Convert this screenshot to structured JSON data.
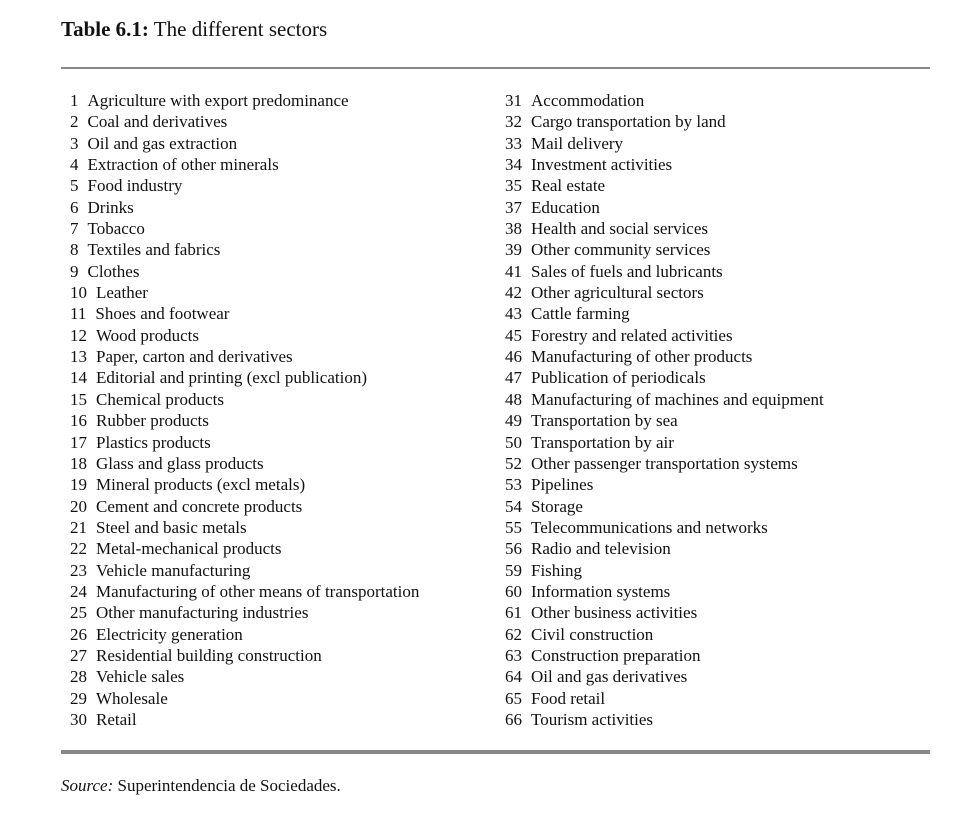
{
  "title": {
    "label": "Table 6.1:",
    "text": "The different sectors"
  },
  "left_column": [
    {
      "num": "1",
      "name": "Agriculture with export predominance"
    },
    {
      "num": "2",
      "name": "Coal and derivatives"
    },
    {
      "num": "3",
      "name": "Oil and gas extraction"
    },
    {
      "num": "4",
      "name": "Extraction of other minerals"
    },
    {
      "num": "5",
      "name": "Food industry"
    },
    {
      "num": "6",
      "name": "Drinks"
    },
    {
      "num": "7",
      "name": "Tobacco"
    },
    {
      "num": "8",
      "name": "Textiles and fabrics"
    },
    {
      "num": "9",
      "name": "Clothes"
    },
    {
      "num": "10",
      "name": "Leather"
    },
    {
      "num": "11",
      "name": "Shoes and footwear"
    },
    {
      "num": "12",
      "name": "Wood products"
    },
    {
      "num": "13",
      "name": "Paper, carton and derivatives"
    },
    {
      "num": "14",
      "name": "Editorial and printing (excl publication)"
    },
    {
      "num": "15",
      "name": "Chemical products"
    },
    {
      "num": "16",
      "name": "Rubber products"
    },
    {
      "num": "17",
      "name": "Plastics products"
    },
    {
      "num": "18",
      "name": "Glass and glass products"
    },
    {
      "num": "19",
      "name": "Mineral products (excl metals)"
    },
    {
      "num": "20",
      "name": "Cement and concrete products"
    },
    {
      "num": "21",
      "name": "Steel and basic metals"
    },
    {
      "num": "22",
      "name": "Metal-mechanical products"
    },
    {
      "num": "23",
      "name": "Vehicle manufacturing"
    },
    {
      "num": "24",
      "name": "Manufacturing of other means of transportation"
    },
    {
      "num": "25",
      "name": "Other manufacturing industries"
    },
    {
      "num": "26",
      "name": "Electricity generation"
    },
    {
      "num": "27",
      "name": "Residential building construction"
    },
    {
      "num": "28",
      "name": "Vehicle sales"
    },
    {
      "num": "29",
      "name": "Wholesale"
    },
    {
      "num": "30",
      "name": "Retail"
    }
  ],
  "right_column": [
    {
      "num": "31",
      "name": "Accommodation"
    },
    {
      "num": "32",
      "name": "Cargo transportation by land"
    },
    {
      "num": "33",
      "name": "Mail delivery"
    },
    {
      "num": "34",
      "name": "Investment activities"
    },
    {
      "num": "35",
      "name": "Real estate"
    },
    {
      "num": "37",
      "name": "Education"
    },
    {
      "num": "38",
      "name": "Health and social services"
    },
    {
      "num": "39",
      "name": "Other community services"
    },
    {
      "num": "41",
      "name": "Sales of fuels and lubricants"
    },
    {
      "num": "42",
      "name": "Other agricultural sectors"
    },
    {
      "num": "43",
      "name": "Cattle farming"
    },
    {
      "num": "45",
      "name": "Forestry and related activities"
    },
    {
      "num": "46",
      "name": "Manufacturing of other products"
    },
    {
      "num": "47",
      "name": "Publication of periodicals"
    },
    {
      "num": "48",
      "name": "Manufacturing of machines and equipment"
    },
    {
      "num": "49",
      "name": "Transportation by sea"
    },
    {
      "num": "50",
      "name": "Transportation by air"
    },
    {
      "num": "52",
      "name": "Other passenger transportation systems"
    },
    {
      "num": "53",
      "name": "Pipelines"
    },
    {
      "num": "54",
      "name": "Storage"
    },
    {
      "num": "55",
      "name": "Telecommunications and networks"
    },
    {
      "num": "56",
      "name": "Radio and television"
    },
    {
      "num": "59",
      "name": "Fishing"
    },
    {
      "num": "60",
      "name": "Information systems"
    },
    {
      "num": "61",
      "name": "Other business activities"
    },
    {
      "num": "62",
      "name": "Civil construction"
    },
    {
      "num": "63",
      "name": "Construction preparation"
    },
    {
      "num": "64",
      "name": "Oil and gas derivatives"
    },
    {
      "num": "65",
      "name": "Food retail"
    },
    {
      "num": "66",
      "name": "Tourism activities"
    }
  ],
  "source": {
    "label": "Source:",
    "text": "Superintendencia de Sociedades."
  }
}
